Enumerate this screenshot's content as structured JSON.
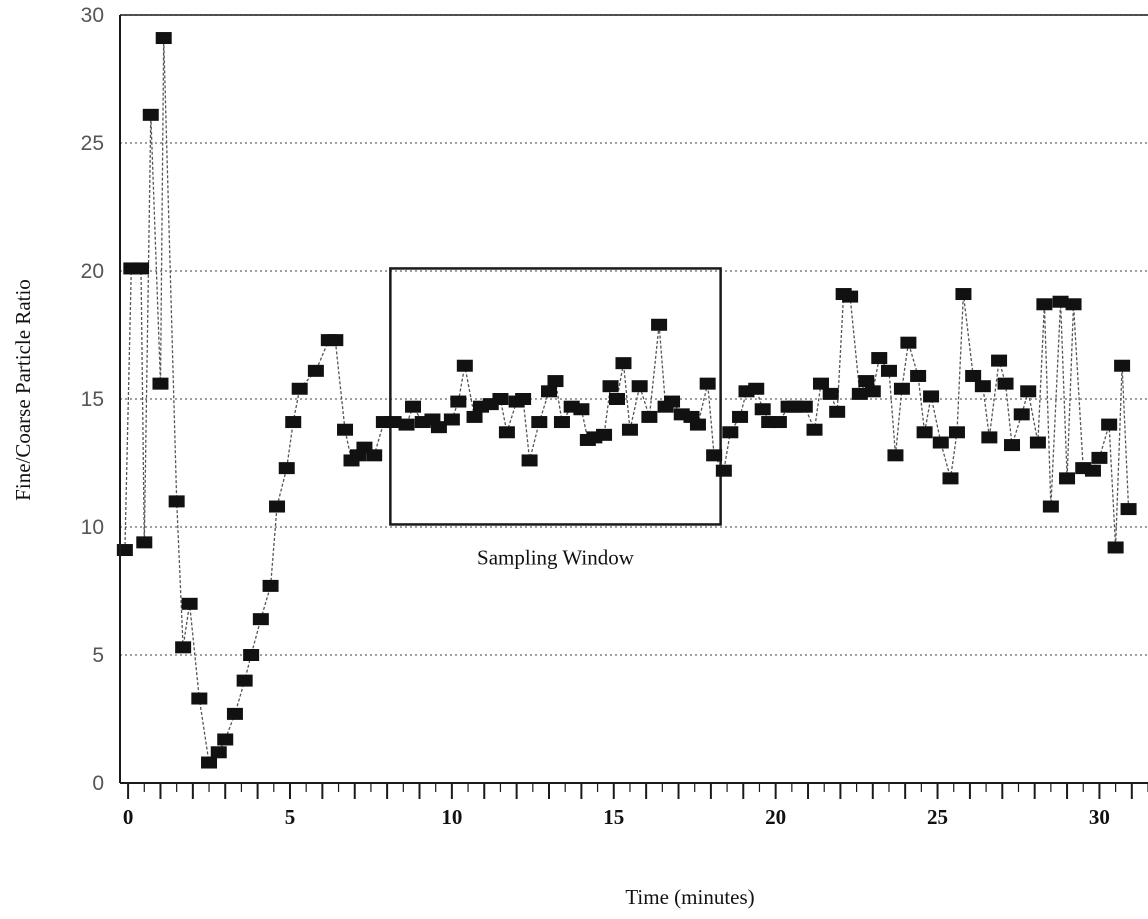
{
  "chart_data": {
    "type": "line",
    "title": "",
    "xlabel": "Time (minutes)",
    "ylabel": "Fine/Coarse Particle Ratio",
    "xlim": [
      -0.25,
      31.5
    ],
    "ylim": [
      0,
      30
    ],
    "x_ticks": [
      0,
      5,
      10,
      15,
      20,
      25,
      30
    ],
    "y_ticks": [
      0,
      5,
      10,
      15,
      20,
      25,
      30
    ],
    "grid": true,
    "legend": "none",
    "annotation": {
      "label": "Sampling Window",
      "x_range": [
        8.1,
        18.3
      ],
      "y_range": [
        10.1,
        20.1
      ]
    },
    "series": [
      {
        "name": "",
        "marker": "square",
        "color": "#111111",
        "points": [
          [
            -0.1,
            9.1
          ],
          [
            0.1,
            20.1
          ],
          [
            0.4,
            20.1
          ],
          [
            0.5,
            9.4
          ],
          [
            0.7,
            26.1
          ],
          [
            1.0,
            15.6
          ],
          [
            1.1,
            29.1
          ],
          [
            1.5,
            11.0
          ],
          [
            1.7,
            5.3
          ],
          [
            1.9,
            7.0
          ],
          [
            2.2,
            3.3
          ],
          [
            2.5,
            0.8
          ],
          [
            2.8,
            1.2
          ],
          [
            3.0,
            1.7
          ],
          [
            3.3,
            2.7
          ],
          [
            3.6,
            4.0
          ],
          [
            3.8,
            5.0
          ],
          [
            4.1,
            6.4
          ],
          [
            4.4,
            7.7
          ],
          [
            4.6,
            10.8
          ],
          [
            4.9,
            12.3
          ],
          [
            5.1,
            14.1
          ],
          [
            5.3,
            15.4
          ],
          [
            5.8,
            16.1
          ],
          [
            6.2,
            17.3
          ],
          [
            6.4,
            17.3
          ],
          [
            6.7,
            13.8
          ],
          [
            6.9,
            12.6
          ],
          [
            7.1,
            12.8
          ],
          [
            7.3,
            13.1
          ],
          [
            7.6,
            12.8
          ],
          [
            7.9,
            14.1
          ],
          [
            8.2,
            14.1
          ],
          [
            8.6,
            14.0
          ],
          [
            8.8,
            14.7
          ],
          [
            9.1,
            14.1
          ],
          [
            9.4,
            14.2
          ],
          [
            9.6,
            13.9
          ],
          [
            10.0,
            14.2
          ],
          [
            10.2,
            14.9
          ],
          [
            10.4,
            16.3
          ],
          [
            10.7,
            14.3
          ],
          [
            10.9,
            14.7
          ],
          [
            11.2,
            14.8
          ],
          [
            11.5,
            15.0
          ],
          [
            11.7,
            13.7
          ],
          [
            12.0,
            14.9
          ],
          [
            12.2,
            15.0
          ],
          [
            12.4,
            12.6
          ],
          [
            12.7,
            14.1
          ],
          [
            13.0,
            15.3
          ],
          [
            13.2,
            15.7
          ],
          [
            13.4,
            14.1
          ],
          [
            13.7,
            14.7
          ],
          [
            14.0,
            14.6
          ],
          [
            14.2,
            13.4
          ],
          [
            14.4,
            13.5
          ],
          [
            14.7,
            13.6
          ],
          [
            14.9,
            15.5
          ],
          [
            15.1,
            15.0
          ],
          [
            15.3,
            16.4
          ],
          [
            15.5,
            13.8
          ],
          [
            15.8,
            15.5
          ],
          [
            16.1,
            14.3
          ],
          [
            16.4,
            17.9
          ],
          [
            16.6,
            14.7
          ],
          [
            16.8,
            14.9
          ],
          [
            17.1,
            14.4
          ],
          [
            17.4,
            14.3
          ],
          [
            17.6,
            14.0
          ],
          [
            17.9,
            15.6
          ],
          [
            18.1,
            12.8
          ],
          [
            18.4,
            12.2
          ],
          [
            18.6,
            13.7
          ],
          [
            18.9,
            14.3
          ],
          [
            19.1,
            15.3
          ],
          [
            19.4,
            15.4
          ],
          [
            19.6,
            14.6
          ],
          [
            19.8,
            14.1
          ],
          [
            20.1,
            14.1
          ],
          [
            20.4,
            14.7
          ],
          [
            20.6,
            14.7
          ],
          [
            20.9,
            14.7
          ],
          [
            21.2,
            13.8
          ],
          [
            21.4,
            15.6
          ],
          [
            21.7,
            15.2
          ],
          [
            21.9,
            14.5
          ],
          [
            22.1,
            19.1
          ],
          [
            22.3,
            19.0
          ],
          [
            22.6,
            15.2
          ],
          [
            22.8,
            15.7
          ],
          [
            23.0,
            15.3
          ],
          [
            23.2,
            16.6
          ],
          [
            23.5,
            16.1
          ],
          [
            23.7,
            12.8
          ],
          [
            23.9,
            15.4
          ],
          [
            24.1,
            17.2
          ],
          [
            24.4,
            15.9
          ],
          [
            24.6,
            13.7
          ],
          [
            24.8,
            15.1
          ],
          [
            25.1,
            13.3
          ],
          [
            25.4,
            11.9
          ],
          [
            25.6,
            13.7
          ],
          [
            25.8,
            19.1
          ],
          [
            26.1,
            15.9
          ],
          [
            26.4,
            15.5
          ],
          [
            26.6,
            13.5
          ],
          [
            26.9,
            16.5
          ],
          [
            27.1,
            15.6
          ],
          [
            27.3,
            13.2
          ],
          [
            27.6,
            14.4
          ],
          [
            27.8,
            15.3
          ],
          [
            28.1,
            13.3
          ],
          [
            28.3,
            18.7
          ],
          [
            28.5,
            10.8
          ],
          [
            28.8,
            18.8
          ],
          [
            29.0,
            11.9
          ],
          [
            29.2,
            18.7
          ],
          [
            29.5,
            12.3
          ],
          [
            29.8,
            12.2
          ],
          [
            30.0,
            12.7
          ],
          [
            30.3,
            14.0
          ],
          [
            30.5,
            9.2
          ],
          [
            30.7,
            16.3
          ],
          [
            30.9,
            10.7
          ]
        ]
      }
    ]
  }
}
